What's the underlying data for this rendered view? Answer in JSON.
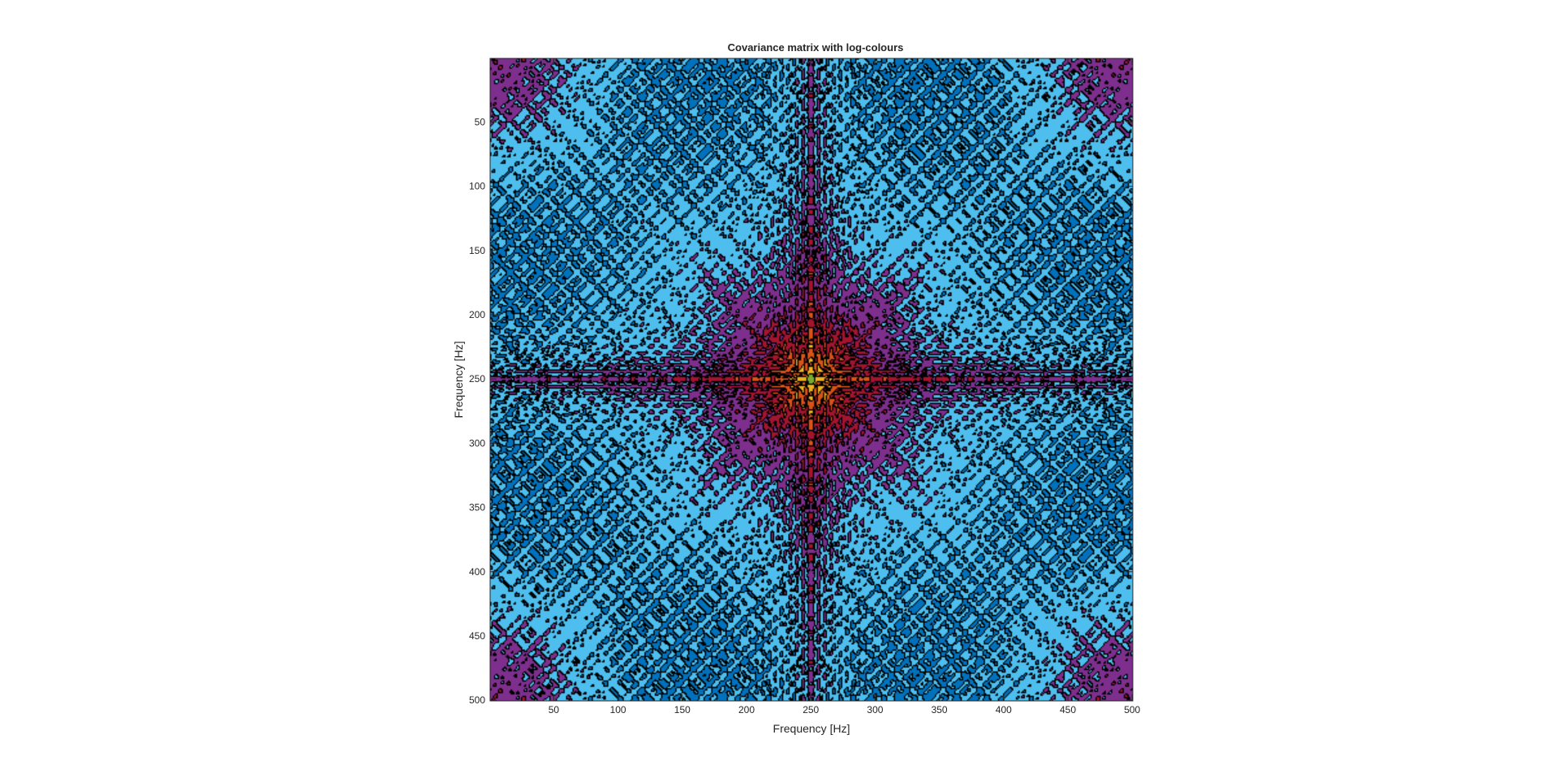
{
  "chart_data": {
    "type": "heatmap",
    "title": "Covariance matrix with log-colours",
    "xlabel": "Frequency [Hz]",
    "ylabel": "Frequency [Hz]",
    "xlim": [
      0.5,
      500.5
    ],
    "ylim": [
      0.5,
      500.5
    ],
    "y_direction": "reversed",
    "x_ticks": [
      50,
      100,
      150,
      200,
      250,
      300,
      350,
      400,
      450,
      500
    ],
    "y_ticks": [
      50,
      100,
      150,
      200,
      250,
      300,
      350,
      400,
      450,
      500
    ],
    "colormap": [
      "#0072BD",
      "#4DBEEE",
      "#7E2F8E",
      "#A2142F",
      "#D95319",
      "#EDB120",
      "#77AC30"
    ],
    "contour_line_color": "#000000",
    "grid": false,
    "legend": false,
    "matrix_size": [
      500,
      500
    ],
    "symmetry": "symmetric about both diagonals and the center (250, 250)"
  }
}
